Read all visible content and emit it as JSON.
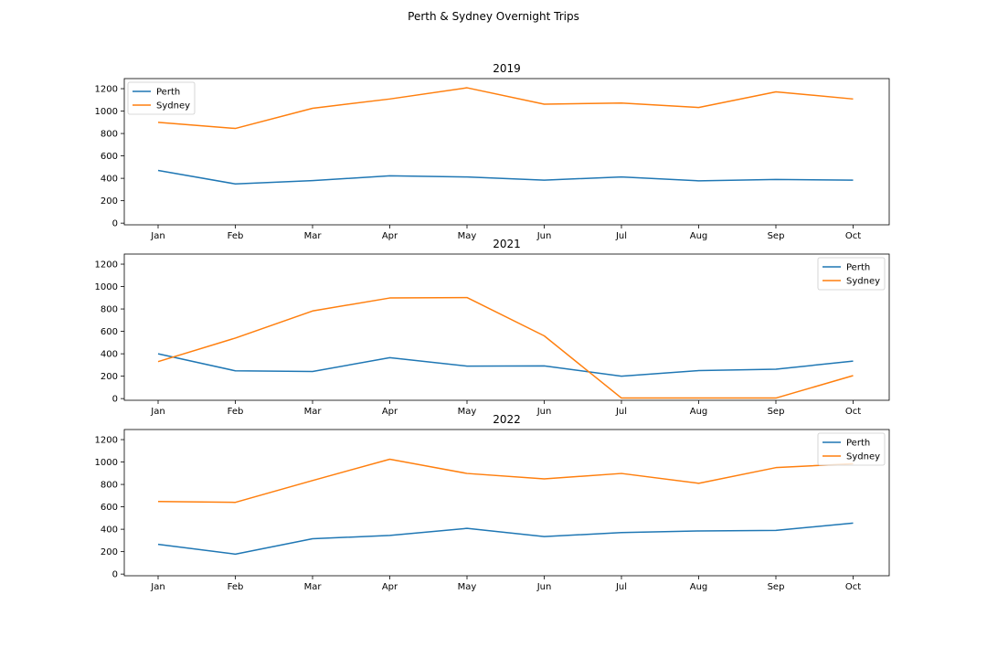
{
  "figure": {
    "title": "Perth & Sydney Overnight Trips"
  },
  "chart_data": [
    {
      "type": "line",
      "title": "2019",
      "categories": [
        "Jan",
        "Feb",
        "Mar",
        "Apr",
        "May",
        "Jun",
        "Jul",
        "Aug",
        "Sep",
        "Oct"
      ],
      "yticks": [
        0,
        200,
        400,
        600,
        800,
        1000,
        1200
      ],
      "ylim": [
        -15,
        1290
      ],
      "legend": "upper-left",
      "series": [
        {
          "name": "Perth",
          "color": "#1f77b4",
          "values": [
            470,
            350,
            380,
            422,
            412,
            384,
            412,
            378,
            390,
            384
          ]
        },
        {
          "name": "Sydney",
          "color": "#ff7f0e",
          "values": [
            900,
            845,
            1025,
            1108,
            1208,
            1062,
            1072,
            1032,
            1172,
            1108
          ]
        }
      ]
    },
    {
      "type": "line",
      "title": "2021",
      "categories": [
        "Jan",
        "Feb",
        "Mar",
        "Apr",
        "May",
        "Jun",
        "Jul",
        "Aug",
        "Sep",
        "Oct"
      ],
      "yticks": [
        0,
        200,
        400,
        600,
        800,
        1000,
        1200
      ],
      "ylim": [
        -15,
        1290
      ],
      "legend": "upper-right",
      "series": [
        {
          "name": "Perth",
          "color": "#1f77b4",
          "values": [
            400,
            248,
            242,
            365,
            290,
            292,
            200,
            250,
            262,
            335
          ]
        },
        {
          "name": "Sydney",
          "color": "#ff7f0e",
          "values": [
            330,
            540,
            782,
            898,
            902,
            560,
            5,
            5,
            5,
            205
          ]
        }
      ]
    },
    {
      "type": "line",
      "title": "2022",
      "categories": [
        "Jan",
        "Feb",
        "Mar",
        "Apr",
        "May",
        "Jun",
        "Jul",
        "Aug",
        "Sep",
        "Oct"
      ],
      "yticks": [
        0,
        200,
        400,
        600,
        800,
        1000,
        1200
      ],
      "ylim": [
        -15,
        1290
      ],
      "legend": "upper-right",
      "series": [
        {
          "name": "Perth",
          "color": "#1f77b4",
          "values": [
            265,
            178,
            315,
            345,
            408,
            335,
            370,
            385,
            390,
            455
          ]
        },
        {
          "name": "Sydney",
          "color": "#ff7f0e",
          "values": [
            648,
            640,
            835,
            1025,
            898,
            850,
            898,
            810,
            950,
            985
          ]
        }
      ]
    }
  ]
}
